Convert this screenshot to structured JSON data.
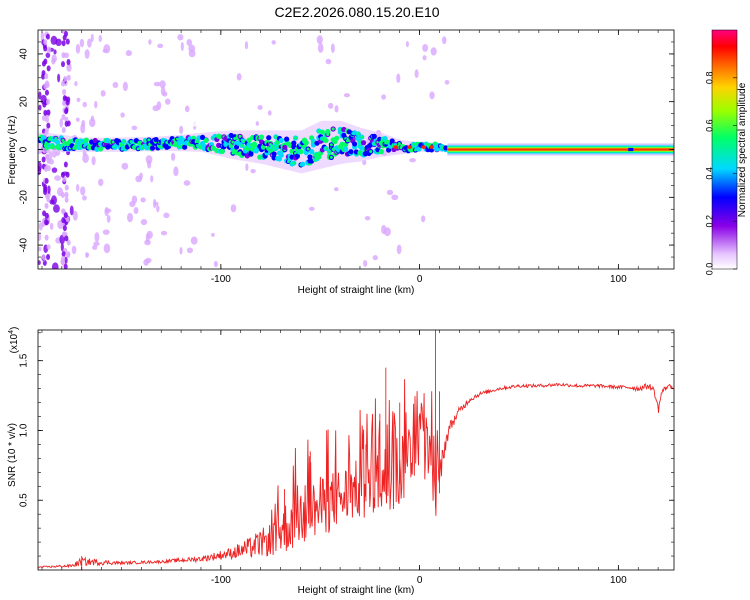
{
  "title": "C2E2.2026.080.15.20.E10",
  "chart_data": [
    {
      "type": "heatmap",
      "panel": "spectrogram",
      "xlabel": "Height of straight line (km)",
      "ylabel": "Frequency (Hz)",
      "xlim": [
        -192,
        128
      ],
      "ylim": [
        -50,
        50
      ],
      "x_ticks": [
        -100,
        0,
        100
      ],
      "x_minor_step": 10,
      "y_ticks": [
        -40,
        -20,
        0,
        20,
        40
      ],
      "y_minor_step": 5,
      "colorbar": {
        "label": "Normalized spectral amplitude",
        "range": [
          0.0,
          1.0
        ],
        "ticks": [
          0.0,
          0.2,
          0.4,
          0.6,
          0.8
        ],
        "tick_labels": [
          "0.0",
          "0.2",
          "0.4",
          "0.6",
          "0.8"
        ],
        "colors": [
          "#ffffff",
          "#d9a6ff",
          "#7a00e6",
          "#0000ff",
          "#00d9ff",
          "#00ff66",
          "#ccff00",
          "#ff8800",
          "#ff0000",
          "#ff0080"
        ]
      },
      "ridge": {
        "description_points_x": [
          -188,
          -170,
          -150,
          -130,
          -110,
          -95,
          -80,
          -70,
          -60,
          -50,
          -40,
          -30,
          -20,
          -10,
          0,
          8,
          14
        ],
        "frequency_hz": [
          3,
          2,
          2,
          2.5,
          3,
          2,
          1,
          0,
          -1,
          2,
          3,
          2,
          2,
          1,
          1,
          1,
          0
        ],
        "spread_hz": [
          4,
          3,
          3,
          3,
          4,
          6,
          7,
          8,
          9,
          10,
          9,
          7,
          5,
          3,
          2,
          2,
          1
        ]
      },
      "stable_line": {
        "x_start": 14,
        "x_end": 128,
        "frequency_hz": 0
      }
    },
    {
      "type": "line",
      "panel": "snr",
      "xlabel": "Height of straight line (km)",
      "ylabel": "SNR (10 * v/v)",
      "y_exponent_label": "(x10",
      "y_exponent_value": "4",
      "y_exponent_close": ")",
      "xlim": [
        -192,
        128
      ],
      "ylim": [
        0,
        1.72
      ],
      "x_ticks": [
        -100,
        0,
        100
      ],
      "x_minor_step": 10,
      "y_ticks": [
        0.5,
        1.0,
        1.5
      ],
      "y_tick_labels": [
        "0.5",
        "1.0",
        "1.5"
      ],
      "y_minor_step": 0.1,
      "line_color": "#ee2222",
      "series": [
        {
          "name": "SNR",
          "x": [
            -192,
            -175,
            -170,
            -150,
            -130,
            -110,
            -95,
            -85,
            -75,
            -70,
            -65,
            -60,
            -50,
            -40,
            -30,
            -20,
            -15,
            -10,
            -5,
            0,
            5,
            8,
            10,
            12,
            15,
            20,
            25,
            30,
            40,
            50,
            60,
            70,
            80,
            90,
            100,
            105,
            110,
            115,
            118,
            120,
            122,
            125,
            128
          ],
          "y": [
            0.02,
            0.03,
            0.06,
            0.05,
            0.06,
            0.08,
            0.12,
            0.16,
            0.22,
            0.28,
            0.33,
            0.38,
            0.45,
            0.52,
            0.58,
            0.62,
            0.66,
            0.72,
            0.85,
            0.95,
            0.8,
            0.55,
            0.65,
            0.85,
            1.02,
            1.14,
            1.22,
            1.26,
            1.3,
            1.32,
            1.32,
            1.33,
            1.32,
            1.32,
            1.31,
            1.31,
            1.3,
            1.32,
            1.29,
            1.15,
            1.28,
            1.32,
            1.31
          ],
          "noise": [
            0.005,
            0.01,
            0.03,
            0.01,
            0.01,
            0.02,
            0.04,
            0.08,
            0.12,
            0.18,
            0.2,
            0.22,
            0.22,
            0.22,
            0.22,
            0.25,
            0.3,
            0.3,
            0.25,
            0.2,
            0.25,
            0.2,
            0.15,
            0.08,
            0.04,
            0.03,
            0.02,
            0.015,
            0.012,
            0.012,
            0.012,
            0.012,
            0.012,
            0.012,
            0.012,
            0.015,
            0.02,
            0.02,
            0.02,
            0.04,
            0.02,
            0.015,
            0.015
          ],
          "peaks": [
            {
              "x": -170,
              "y": 0.1
            },
            {
              "x": -68,
              "y": 0.58
            },
            {
              "x": -55,
              "y": 0.85
            },
            {
              "x": -42,
              "y": 0.7
            },
            {
              "x": -27,
              "y": 0.9
            },
            {
              "x": -20,
              "y": 1.12
            },
            {
              "x": -17,
              "y": 1.45
            },
            {
              "x": -10,
              "y": 1.2
            },
            {
              "x": 8,
              "y": 1.72
            },
            {
              "x": 10,
              "y": 1.28
            }
          ]
        }
      ]
    }
  ]
}
